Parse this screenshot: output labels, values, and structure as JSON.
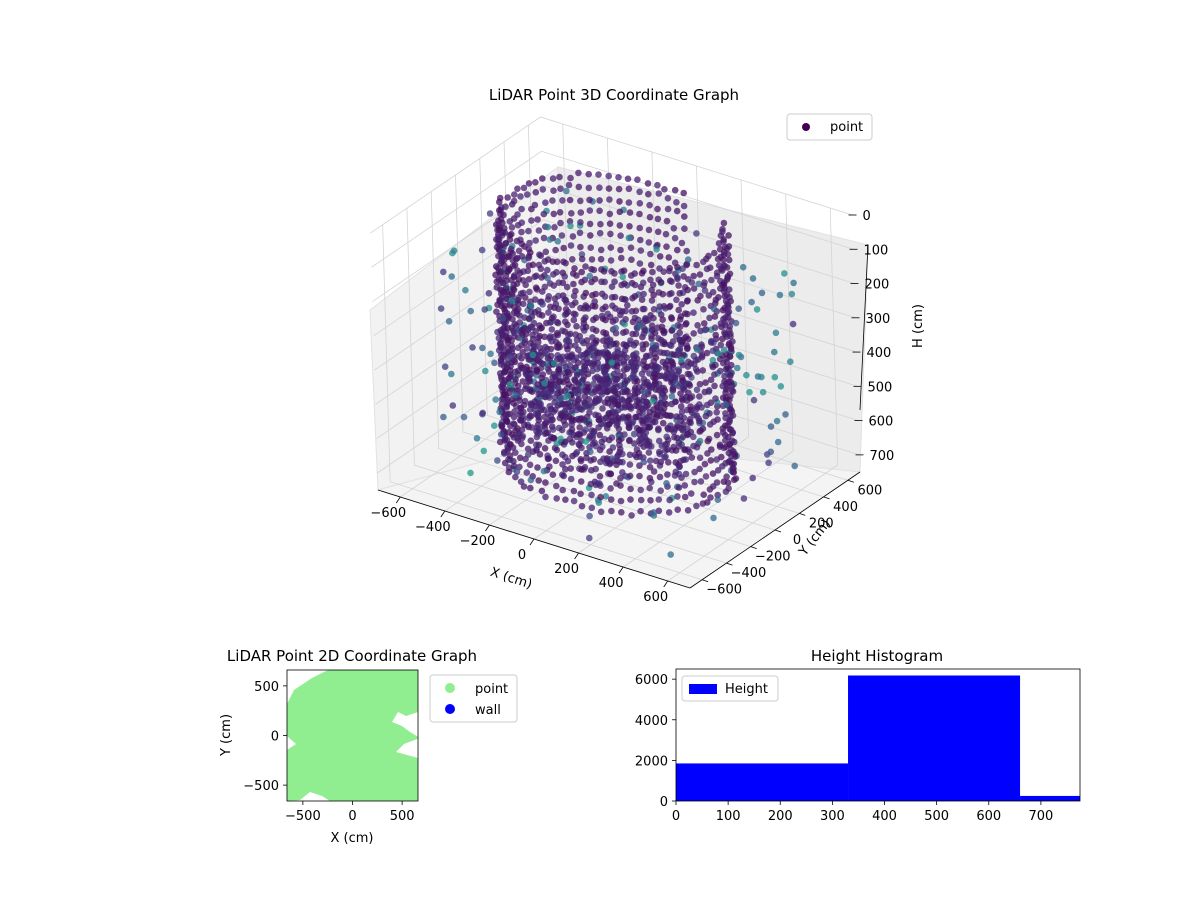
{
  "chart_data": [
    {
      "type": "scatter",
      "projection": "3d",
      "title": "LiDAR Point 3D Coordinate Graph",
      "xlabel": "X (cm)",
      "ylabel": "Y (cm)",
      "zlabel": "H (cm)",
      "xlim": [
        -700,
        700
      ],
      "ylim": [
        -700,
        700
      ],
      "zlim": [
        750,
        0
      ],
      "z_inverted": true,
      "xticks": [
        -600,
        -400,
        -200,
        0,
        200,
        400,
        600
      ],
      "yticks": [
        -600,
        -400,
        -200,
        0,
        200,
        400,
        600
      ],
      "zticks": [
        0,
        100,
        200,
        300,
        400,
        500,
        600,
        700
      ],
      "grid": true,
      "legend": {
        "position": "top-right",
        "entries": [
          {
            "name": "point",
            "color": "#440154"
          }
        ]
      },
      "colormap": "viridis",
      "description_of_points": "dense cylindrical ring of points at radius ~450 cm spanning heights 0–700 cm, a partially open opening toward +Y, and scattered outliers near the floor and outside the ring",
      "samples": {
        "ring_radius": 450,
        "wall_height": [
          0,
          700
        ],
        "outlier_count": 260
      }
    },
    {
      "type": "scatter",
      "title": "LiDAR Point 2D Coordinate Graph",
      "xlabel": "X (cm)",
      "ylabel": "Y (cm)",
      "xlim": [
        -660,
        660
      ],
      "ylim": [
        -660,
        660
      ],
      "xticks": [
        -500,
        0,
        500
      ],
      "yticks": [
        -500,
        0,
        500
      ],
      "legend": {
        "position": "outside-right",
        "entries": [
          {
            "name": "point",
            "color": "#90ee90"
          },
          {
            "name": "wall",
            "color": "#0000ff"
          }
        ]
      },
      "series": [
        {
          "name": "point",
          "color": "#90ee90",
          "shape": "filled disk radius ~620 cm with notches at left and right"
        },
        {
          "name": "wall",
          "color": "#0000ff",
          "points": []
        }
      ]
    },
    {
      "type": "bar",
      "subtype": "histogram",
      "title": "Height Histogram",
      "xlim": [
        0,
        775
      ],
      "ylim": [
        0,
        6500
      ],
      "xticks": [
        0,
        100,
        200,
        300,
        400,
        500,
        600,
        700
      ],
      "yticks": [
        0,
        2000,
        4000,
        6000
      ],
      "legend": {
        "position": "top-left",
        "entries": [
          {
            "name": "Height",
            "color": "#0000ff"
          }
        ]
      },
      "bins": [
        {
          "start": 0,
          "end": 330,
          "count": 1850
        },
        {
          "start": 330,
          "end": 660,
          "count": 6180
        },
        {
          "start": 660,
          "end": 775,
          "count": 250
        }
      ],
      "color": "#0000ff"
    }
  ]
}
